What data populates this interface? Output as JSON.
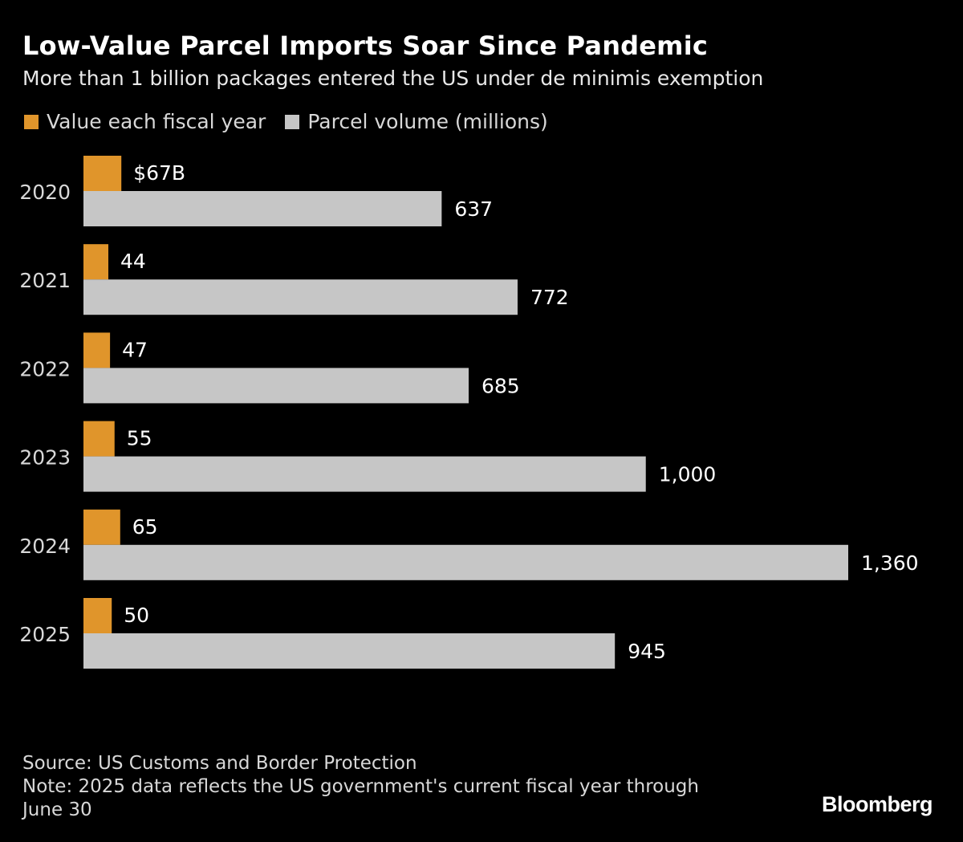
{
  "chart_data": {
    "type": "bar",
    "orientation": "horizontal",
    "title": "Low-Value Parcel Imports Soar Since Pandemic",
    "subtitle": "More than 1 billion packages entered the US under de minimis exemption",
    "categories": [
      "2020",
      "2021",
      "2022",
      "2023",
      "2024",
      "2025"
    ],
    "series": [
      {
        "name": "Value each fiscal year",
        "color": "#e0952b",
        "unit": "billion USD",
        "values": [
          67,
          44,
          47,
          55,
          65,
          50
        ],
        "labels": [
          "$67B",
          "44",
          "47",
          "55",
          "65",
          "50"
        ]
      },
      {
        "name": "Parcel volume (millions)",
        "color": "#c6c6c6",
        "unit": "millions",
        "values": [
          637,
          772,
          685,
          1000,
          1360,
          945
        ],
        "labels": [
          "637",
          "772",
          "685",
          "1,000",
          "1,360",
          "945"
        ]
      }
    ],
    "xlim": [
      0,
      1360
    ],
    "grid": false,
    "legend_position": "top-left"
  },
  "footer": {
    "source": "Source: US Customs and Border Protection",
    "note_line1": "Note: 2025 data reflects the US government's current fiscal year through",
    "note_line2": "June 30"
  },
  "brand": "Bloomberg"
}
